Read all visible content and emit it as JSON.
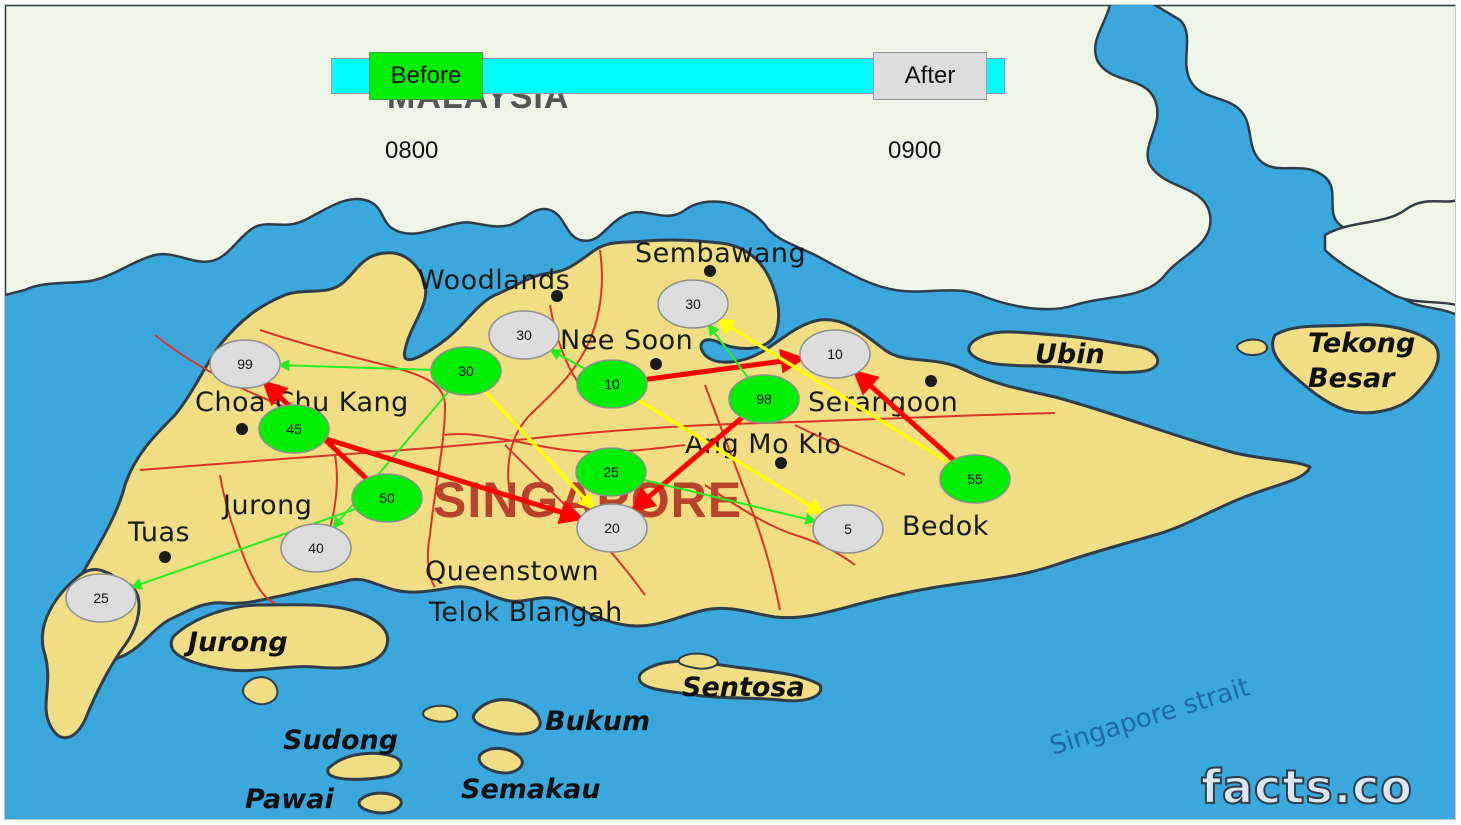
{
  "timeline": {
    "before_label": "Before",
    "after_label": "After",
    "start_time": "0800",
    "end_time": "0900"
  },
  "map_labels": {
    "country_top": "MALAYSIA",
    "country": "SINGAPORE",
    "strait": "Singapore strait",
    "watermark": "facts.co",
    "places": [
      "Sembawang",
      "Woodlands",
      "Nee Soon",
      "Choa Chu Kang",
      "Serangoon",
      "Ang Mo Kio",
      "Jurong",
      "Tuas",
      "Queenstown",
      "Telok Blangah",
      "Bedok"
    ],
    "islands": [
      "Ubin",
      "Tekong",
      "Besar",
      "Jurong",
      "Sentosa",
      "Bukum",
      "Sudong",
      "Semakau",
      "Pawai"
    ]
  },
  "colors": {
    "sea": "#3aa8dc",
    "land_mainland": "#eef5e7",
    "land_singapore": "#f1dd84",
    "roads": "#d8352a",
    "origin_node": "#00ee00",
    "destination_node": "#dcdcdc",
    "flow_high": "#ff0000",
    "flow_medium": "#ffff00",
    "flow_low": "#22ee22"
  },
  "nodes": [
    {
      "id": "n99",
      "value": "99",
      "kind": "destination"
    },
    {
      "id": "n45",
      "value": "45",
      "kind": "origin"
    },
    {
      "id": "n30a",
      "value": "30",
      "kind": "origin"
    },
    {
      "id": "n30b",
      "value": "30",
      "kind": "destination"
    },
    {
      "id": "n30c",
      "value": "30",
      "kind": "destination"
    },
    {
      "id": "n10a",
      "value": "10",
      "kind": "origin"
    },
    {
      "id": "n10b",
      "value": "10",
      "kind": "destination"
    },
    {
      "id": "n98",
      "value": "98",
      "kind": "origin"
    },
    {
      "id": "n55",
      "value": "55",
      "kind": "origin"
    },
    {
      "id": "n25a",
      "value": "25",
      "kind": "origin"
    },
    {
      "id": "n50",
      "value": "50",
      "kind": "origin"
    },
    {
      "id": "n20",
      "value": "20",
      "kind": "destination"
    },
    {
      "id": "n5",
      "value": "5",
      "kind": "destination"
    },
    {
      "id": "n40",
      "value": "40",
      "kind": "destination"
    },
    {
      "id": "n25b",
      "value": "25",
      "kind": "destination"
    }
  ],
  "flows": [
    {
      "from": "n30a",
      "to": "n99",
      "level": "low"
    },
    {
      "from": "n30a",
      "to": "n20",
      "level": "medium"
    },
    {
      "from": "n30a",
      "to": "n40",
      "level": "low"
    },
    {
      "from": "n50",
      "to": "n99",
      "level": "high"
    },
    {
      "from": "n45",
      "to": "n20",
      "level": "high"
    },
    {
      "from": "n50",
      "to": "n25b",
      "level": "low"
    },
    {
      "from": "n10a",
      "to": "n30b",
      "level": "low"
    },
    {
      "from": "n10a",
      "to": "n10b",
      "level": "high"
    },
    {
      "from": "n10a",
      "to": "n5",
      "level": "medium"
    },
    {
      "from": "n98",
      "to": "n20",
      "level": "high"
    },
    {
      "from": "n98",
      "to": "n30c",
      "level": "low"
    },
    {
      "from": "n55",
      "to": "n10b",
      "level": "high"
    },
    {
      "from": "n55",
      "to": "n30c",
      "level": "medium"
    },
    {
      "from": "n25a",
      "to": "n5",
      "level": "low"
    }
  ]
}
